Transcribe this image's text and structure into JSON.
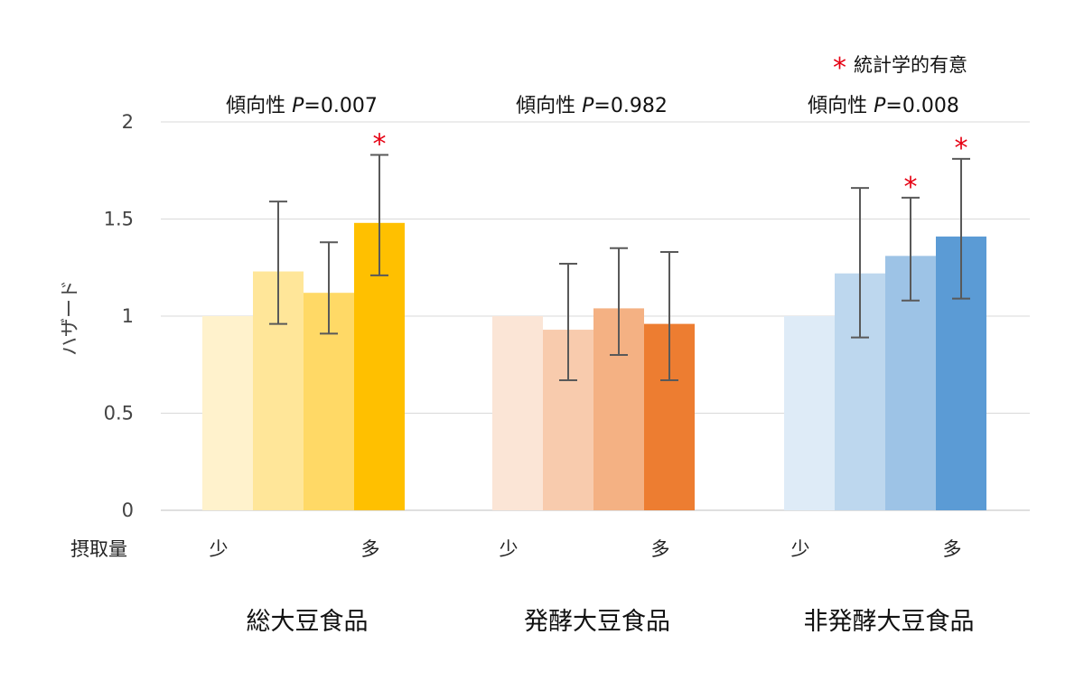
{
  "chart_data": {
    "type": "bar",
    "ylabel": "ハザード",
    "ylim": [
      0,
      2
    ],
    "yticks": [
      "0",
      "0.5",
      "1",
      "1.5",
      "2"
    ],
    "grid": true,
    "legend": {
      "symbol": "*",
      "text": "統計学的有意",
      "placement": "top-right"
    },
    "intake_label": "摂取量",
    "low_label": "少",
    "high_label": "多",
    "groups": [
      {
        "name": "総大豆食品",
        "trend_prefix": "傾向性 ",
        "trend_p": "P",
        "trend_value": "=0.007",
        "values": [
          1.0,
          1.23,
          1.12,
          1.48
        ],
        "ci_low": [
          null,
          0.96,
          0.91,
          1.21
        ],
        "ci_high": [
          null,
          1.59,
          1.38,
          1.83
        ],
        "significant": [
          false,
          false,
          false,
          true
        ],
        "colors": [
          "#fff2cc",
          "#ffe699",
          "#ffd966",
          "#ffc000"
        ]
      },
      {
        "name": "発酵大豆食品",
        "trend_prefix": "傾向性 ",
        "trend_p": "P",
        "trend_value": "=0.982",
        "values": [
          1.0,
          0.93,
          1.04,
          0.96
        ],
        "ci_low": [
          null,
          0.67,
          0.8,
          0.67
        ],
        "ci_high": [
          null,
          1.27,
          1.35,
          1.33
        ],
        "significant": [
          false,
          false,
          false,
          false
        ],
        "colors": [
          "#fbe5d6",
          "#f8cbad",
          "#f4b183",
          "#ed7d31"
        ]
      },
      {
        "name": "非発酵大豆食品",
        "trend_prefix": "傾向性 ",
        "trend_p": "P",
        "trend_value": "=0.008",
        "values": [
          1.0,
          1.22,
          1.31,
          1.41
        ],
        "ci_low": [
          null,
          0.89,
          1.08,
          1.09
        ],
        "ci_high": [
          null,
          1.66,
          1.61,
          1.81
        ],
        "significant": [
          false,
          false,
          true,
          true
        ],
        "colors": [
          "#deebf7",
          "#bdd7ee",
          "#9dc3e6",
          "#5b9bd5"
        ]
      }
    ]
  }
}
